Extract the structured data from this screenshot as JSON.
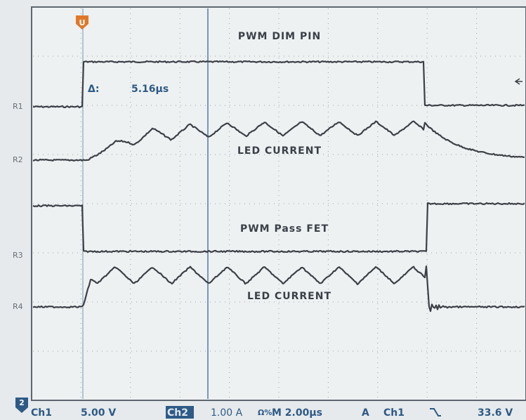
{
  "trigger_marker": "U",
  "cursor": {
    "label": "Δ:",
    "value": "5.16µs"
  },
  "traces": [
    {
      "label": "PWM DIM PIN"
    },
    {
      "label": "LED CURRENT"
    },
    {
      "label": "PWM Pass FET"
    },
    {
      "label": "LED CURRENT"
    }
  ],
  "references": [
    "R1",
    "R2",
    "R3",
    "R4"
  ],
  "status_bar": {
    "channel_marker": "2",
    "ch1": "Ch1",
    "ch1_scale": "5.00 V",
    "ch2": "Ch2",
    "ch2_scale": "1.00 A",
    "ch2_flags": "Ω%",
    "timebase": "M 2.00µs",
    "trigger_mode": "A",
    "trigger_source": "Ch1",
    "trigger_level": "33.6 V"
  }
}
